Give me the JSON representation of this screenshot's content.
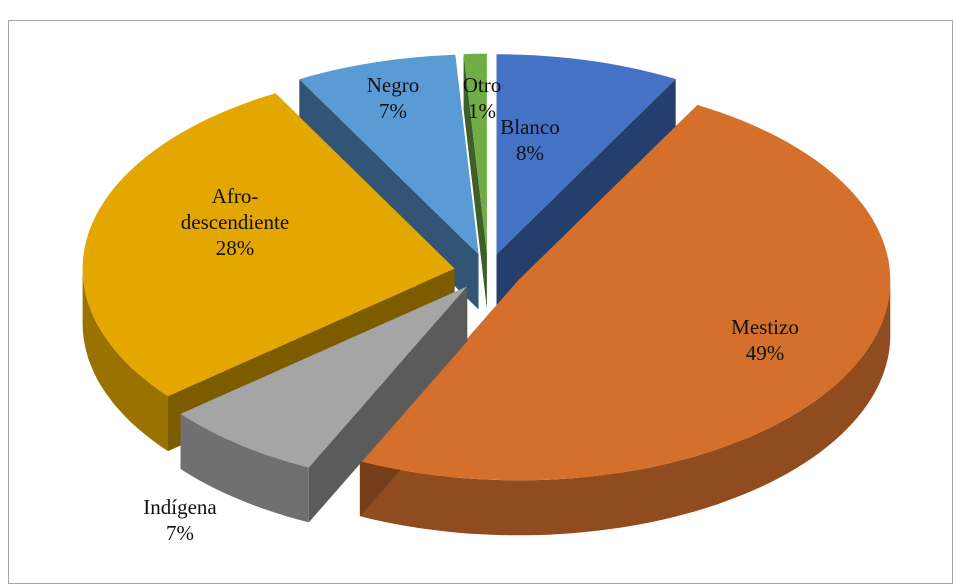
{
  "chart_data": {
    "type": "pie3d",
    "categories": [
      "Blanco",
      "Mestizo",
      "Indígena",
      "Afro-descendiente",
      "Negro",
      "Otro"
    ],
    "values": [
      8,
      49,
      7,
      28,
      7,
      1
    ],
    "value_labels": [
      "8%",
      "49%",
      "7%",
      "28%",
      "7%",
      "1%"
    ],
    "colors": [
      "#4472c4",
      "#d4702c",
      "#a5a5a5",
      "#e3a700",
      "#5b9bd5",
      "#70ad47"
    ]
  }
}
